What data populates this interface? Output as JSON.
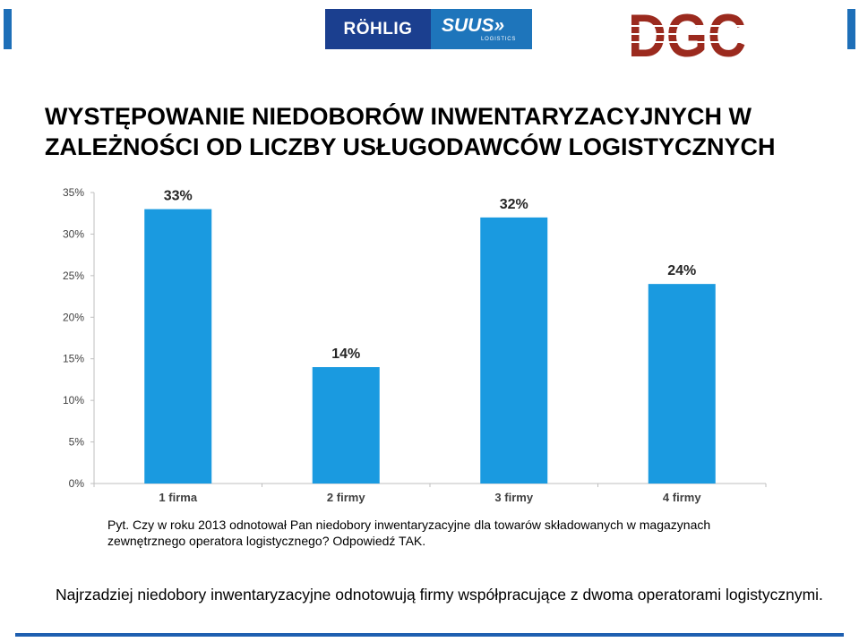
{
  "header": {
    "logo_rohlig": {
      "left_text": "RÖHLIG",
      "right_text": "SUUS",
      "right_mark": "»",
      "right_subtext": "LOGISTICS",
      "colors": {
        "left_bg": "#1b3f8f",
        "right_bg": "#1e75bb"
      }
    },
    "logo_dgc": {
      "text": "DGC",
      "color": "#9b2a1e",
      "stripe_color": "#ffffff"
    },
    "edge_bar_color": "#1e6fb8"
  },
  "title": "WYSTĘPOWANIE NIEDOBORÓW INWENTARYZACYJNYCH W ZALEŻNOŚCI OD LICZBY USŁUGODAWCÓW LOGISTYCZNYCH",
  "chart_data": {
    "type": "bar",
    "categories": [
      "1 firma",
      "2 firmy",
      "3 firmy",
      "4 firmy"
    ],
    "values": [
      33,
      14,
      32,
      24
    ],
    "data_labels": [
      "33%",
      "14%",
      "32%",
      "24%"
    ],
    "title": "",
    "xlabel": "",
    "ylabel": "",
    "ylim": [
      0,
      35
    ],
    "y_ticks": [
      0,
      5,
      10,
      15,
      20,
      25,
      30,
      35
    ],
    "y_tick_labels": [
      "0%",
      "5%",
      "10%",
      "15%",
      "20%",
      "25%",
      "30%",
      "35%"
    ],
    "grid": false,
    "legend": "none",
    "bar_color": "#1a9ae0",
    "axis_color": "#bfbfbf",
    "tick_label_color": "#404040"
  },
  "question": "Pyt. Czy w roku 2013  odnotował Pan niedobory inwentaryzacyjne dla towarów składowanych w magazynach zewnętrznego operatora logistycznego? Odpowiedź TAK.",
  "conclusion": "Najrzadziej niedobory inwentaryzacyjne odnotowują firmy współpracujące z dwoma operatorami logistycznymi.",
  "footer": {
    "rule_color": "#1e5fb0"
  }
}
